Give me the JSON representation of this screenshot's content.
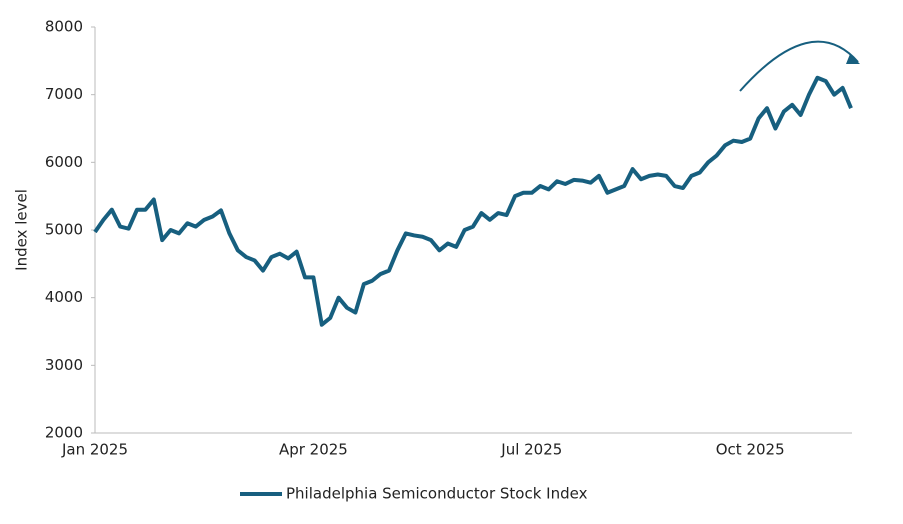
{
  "chart_data": {
    "type": "line",
    "y_label": "Index level",
    "categories": [
      "Jan 2025",
      null,
      null,
      null,
      null,
      null,
      null,
      null,
      null,
      null,
      null,
      null,
      null,
      null,
      null,
      null,
      null,
      null,
      null,
      null,
      null,
      null,
      null,
      null,
      null,
      null,
      "Apr 2025",
      null,
      null,
      null,
      null,
      null,
      null,
      null,
      null,
      null,
      null,
      null,
      null,
      null,
      null,
      null,
      null,
      null,
      null,
      null,
      null,
      null,
      null,
      null,
      null,
      null,
      "Jul 2025",
      null,
      null,
      null,
      null,
      null,
      null,
      null,
      null,
      null,
      null,
      null,
      null,
      null,
      null,
      null,
      null,
      null,
      null,
      null,
      null,
      null,
      null,
      null,
      null,
      null,
      "Oct 2025",
      null,
      null,
      null,
      null,
      null,
      null,
      null,
      null,
      null,
      null,
      null,
      null
    ],
    "series": [
      {
        "name": "Philadelphia Semiconductor Stock Index",
        "color": "#175f7f",
        "values": [
          4970,
          5150,
          5300,
          5050,
          5020,
          5300,
          5300,
          5450,
          4850,
          5000,
          4950,
          5100,
          5050,
          5150,
          5200,
          5290,
          4950,
          4700,
          4600,
          4550,
          4400,
          4600,
          4650,
          4580,
          4680,
          4300,
          4300,
          3600,
          3700,
          4000,
          3850,
          3780,
          4200,
          4250,
          4350,
          4400,
          4700,
          4950,
          4920,
          4900,
          4850,
          4700,
          4800,
          4750,
          5000,
          5050,
          5250,
          5150,
          5250,
          5220,
          5500,
          5550,
          5550,
          5650,
          5600,
          5720,
          5680,
          5740,
          5730,
          5700,
          5800,
          5550,
          5600,
          5650,
          5900,
          5750,
          5800,
          5820,
          5800,
          5650,
          5620,
          5800,
          5850,
          6000,
          6100,
          6250,
          6320,
          6300,
          6350,
          6650,
          6800,
          6500,
          6750,
          6850,
          6700,
          7000,
          7250,
          7200,
          7000,
          7100,
          6800
        ]
      }
    ],
    "ylim": [
      2000,
      8000
    ],
    "yticks": [
      2000,
      3000,
      4000,
      5000,
      6000,
      7000,
      8000
    ],
    "grid": false,
    "legend": "bottom"
  }
}
